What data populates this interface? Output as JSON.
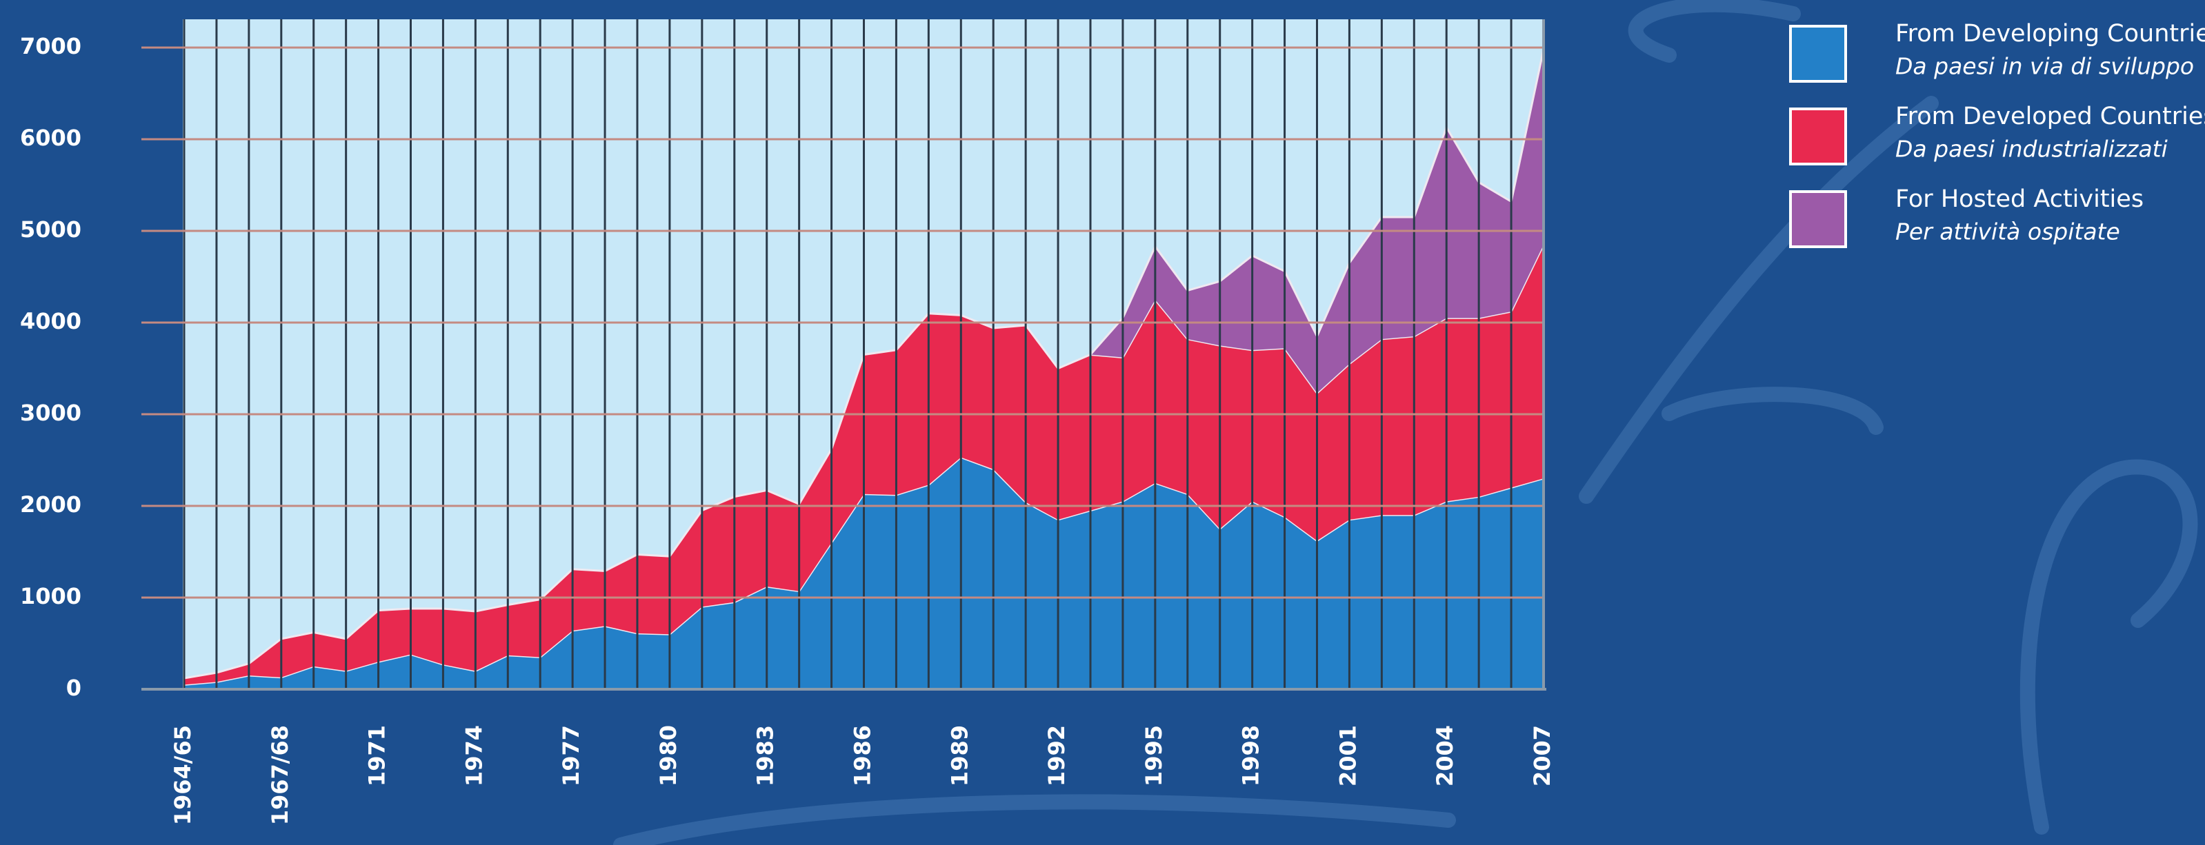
{
  "chart_data": {
    "type": "stacked-area",
    "categories": [
      "1964/65",
      null,
      null,
      "1967/68",
      null,
      null,
      "1971",
      null,
      null,
      "1974",
      null,
      null,
      "1977",
      null,
      null,
      "1980",
      null,
      null,
      "1983",
      null,
      null,
      "1986",
      null,
      null,
      "1989",
      null,
      null,
      "1992",
      null,
      null,
      "1995",
      null,
      null,
      "1998",
      null,
      null,
      "2001",
      null,
      null,
      "2004",
      null,
      null,
      "2007"
    ],
    "series": [
      {
        "name": "From Developing Countries",
        "subtitle": "Da paesi in via di sviluppo",
        "color": "#2380c8",
        "values": [
          50,
          80,
          150,
          130,
          250,
          200,
          300,
          380,
          270,
          200,
          370,
          350,
          640,
          690,
          610,
          600,
          900,
          950,
          1120,
          1070,
          1600,
          2130,
          2120,
          2230,
          2530,
          2400,
          2040,
          1850,
          1950,
          2050,
          2250,
          2130,
          1750,
          2050,
          1880,
          1620,
          1850,
          1900,
          1900,
          2050,
          2100,
          2200,
          2300
        ]
      },
      {
        "name": "From Developed Countries",
        "subtitle": "Da paesi industrializzati",
        "color": "#e8294f",
        "values": [
          70,
          100,
          130,
          420,
          370,
          350,
          560,
          500,
          610,
          650,
          550,
          630,
          670,
          600,
          860,
          850,
          1050,
          1150,
          1050,
          950,
          1020,
          1520,
          1580,
          1870,
          1550,
          1540,
          1930,
          1650,
          1700,
          1570,
          2000,
          1690,
          2000,
          1650,
          1840,
          1610,
          1700,
          1920,
          1950,
          2000,
          1950,
          1920,
          2550
        ]
      },
      {
        "name": "For Hosted Activities",
        "subtitle": "Per attività ospitate",
        "color": "#9c5aa8",
        "values": [
          null,
          null,
          null,
          null,
          null,
          null,
          null,
          null,
          null,
          null,
          null,
          null,
          null,
          null,
          null,
          null,
          null,
          null,
          null,
          null,
          null,
          null,
          null,
          null,
          null,
          null,
          null,
          null,
          0,
          430,
          580,
          530,
          700,
          1030,
          840,
          620,
          1100,
          1330,
          1300,
          2080,
          1480,
          1200,
          2130
        ]
      }
    ],
    "ylim": [
      0,
      7000
    ],
    "yticks": [
      0,
      1000,
      2000,
      3000,
      4000,
      5000,
      6000,
      7000
    ],
    "grid": true
  }
}
